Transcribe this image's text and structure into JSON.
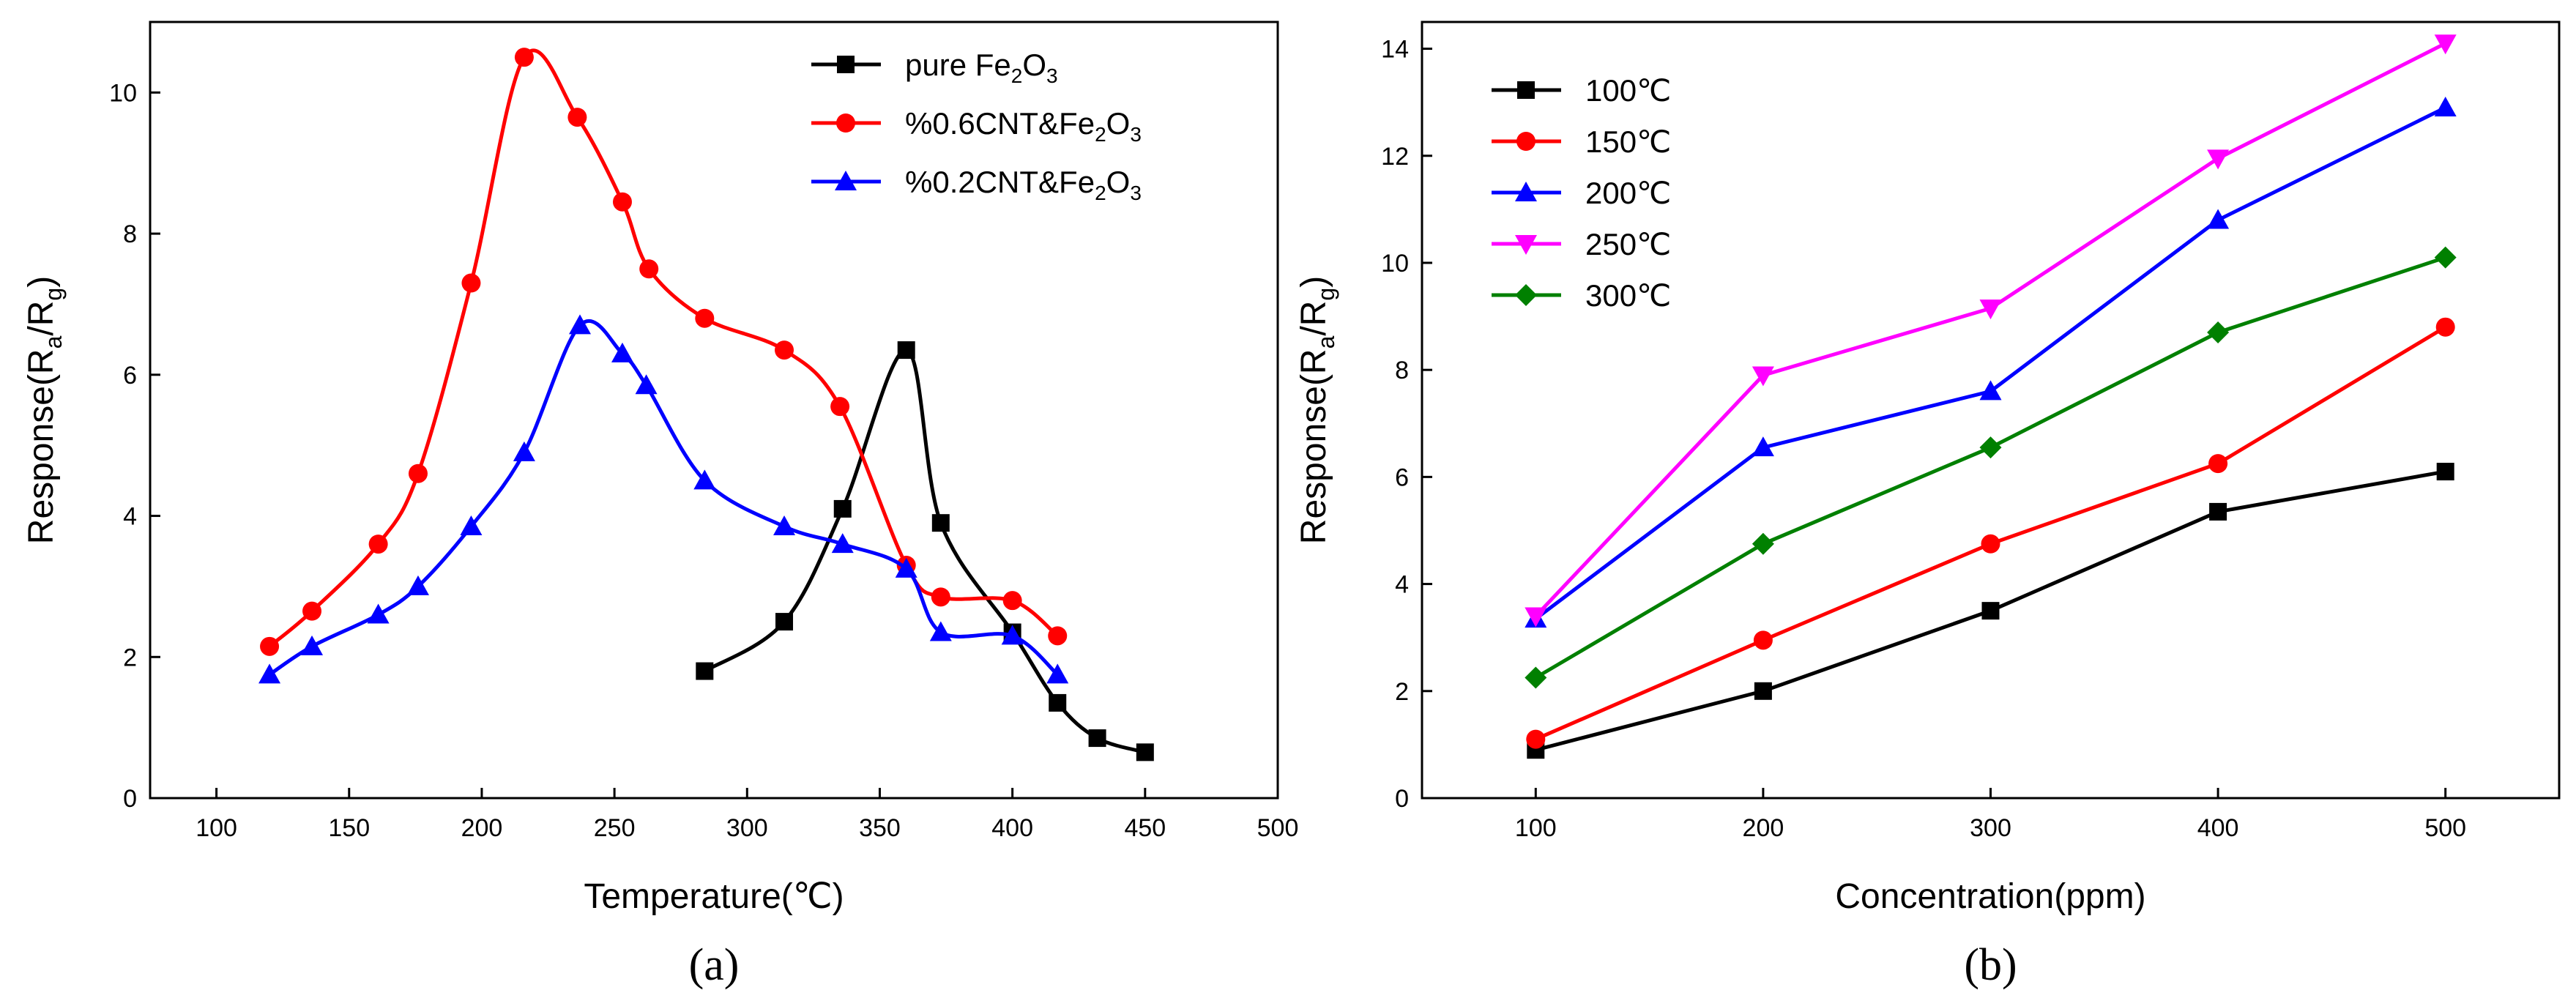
{
  "chart_data": [
    {
      "type": "line",
      "caption": "(a)",
      "xlabel": "Temperature(℃)",
      "ylabel_parts": {
        "main": "Response(R",
        "sub1": "a",
        "mid": "/R",
        "sub2": "g",
        "end": ")"
      },
      "xlim": [
        75,
        500
      ],
      "ylim": [
        0,
        11
      ],
      "xticks": [
        100,
        150,
        200,
        250,
        300,
        350,
        400,
        450,
        500
      ],
      "yticks": [
        0,
        2,
        4,
        6,
        8,
        10
      ],
      "legend_position": "top-right",
      "series": [
        {
          "name": "pure Fe2O3",
          "label_parts": [
            "pure Fe",
            "2",
            "O",
            "3",
            ""
          ],
          "color": "#000000",
          "marker": "square",
          "x": [
            284,
            314,
            336,
            360,
            373,
            400,
            417,
            432,
            450
          ],
          "y": [
            1.8,
            2.5,
            4.1,
            6.35,
            3.9,
            2.35,
            1.35,
            0.85,
            0.65
          ]
        },
        {
          "name": "%0.6CNT&Fe2O3",
          "label_parts": [
            "%0.6CNT&Fe",
            "2",
            "O",
            "3",
            ""
          ],
          "color": "#ff0000",
          "marker": "circle",
          "x": [
            120,
            136,
            161,
            176,
            196,
            216,
            236,
            253,
            263,
            284,
            314,
            335,
            360,
            373,
            400,
            417
          ],
          "y": [
            2.15,
            2.65,
            3.6,
            4.6,
            7.3,
            10.5,
            9.65,
            8.45,
            7.5,
            6.8,
            6.35,
            5.55,
            3.3,
            2.85,
            2.8,
            2.3
          ]
        },
        {
          "name": "%0.2CNT&Fe2O3",
          "label_parts": [
            "%0.2CNT&Fe",
            "2",
            "O",
            "3",
            ""
          ],
          "color": "#0000ff",
          "marker": "triangle-up",
          "x": [
            120,
            136,
            161,
            176,
            196,
            216,
            237,
            253,
            262,
            284,
            314,
            336,
            360,
            373,
            400,
            417
          ],
          "y": [
            1.75,
            2.15,
            2.6,
            3.0,
            3.85,
            4.9,
            6.7,
            6.3,
            5.85,
            4.5,
            3.85,
            3.6,
            3.25,
            2.35,
            2.3,
            1.75
          ]
        }
      ]
    },
    {
      "type": "line",
      "caption": "(b)",
      "xlabel": "Concentration(ppm)",
      "ylabel_parts": {
        "main": "Response(R",
        "sub1": "a",
        "mid": "/R",
        "sub2": "g",
        "end": ")"
      },
      "xlim": [
        50,
        550
      ],
      "ylim": [
        0,
        14.5
      ],
      "xticks": [
        100,
        200,
        300,
        400,
        500
      ],
      "yticks": [
        0,
        2,
        4,
        6,
        8,
        10,
        12,
        14
      ],
      "legend_position": "top-left",
      "categories": [
        100,
        200,
        300,
        400,
        500
      ],
      "series": [
        {
          "name": "100℃",
          "color": "#000000",
          "marker": "square",
          "values": [
            0.9,
            2.0,
            3.5,
            5.35,
            6.1
          ]
        },
        {
          "name": "150℃",
          "color": "#ff0000",
          "marker": "circle",
          "values": [
            1.1,
            2.95,
            4.75,
            6.25,
            8.8
          ]
        },
        {
          "name": "200℃",
          "color": "#0000ff",
          "marker": "triangle-up",
          "values": [
            3.35,
            6.55,
            7.6,
            10.8,
            12.9
          ]
        },
        {
          "name": "250℃",
          "color": "#ff00ff",
          "marker": "triangle-down",
          "values": [
            3.4,
            7.9,
            9.15,
            11.95,
            14.1
          ]
        },
        {
          "name": "300℃",
          "color": "#008000",
          "marker": "diamond",
          "values": [
            2.25,
            4.75,
            6.55,
            8.7,
            10.1
          ]
        }
      ]
    }
  ]
}
